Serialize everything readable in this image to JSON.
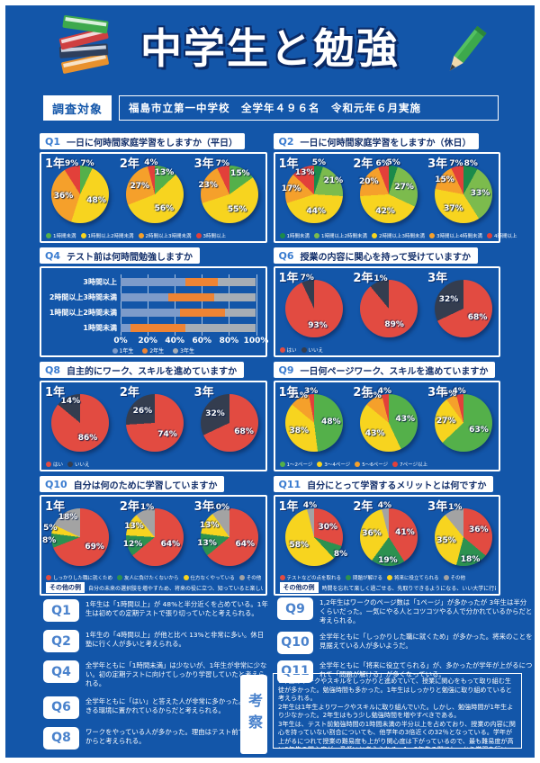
{
  "header": {
    "title": "中学生と勉強",
    "survey_label": "調査対象",
    "survey_info": "福島市立第一中学校　全学年４９６名　令和元年６月実施"
  },
  "colors": {
    "page_background": "#1356a9",
    "panel_border": "#ffffff",
    "question_id_blue": "#3a7cd0",
    "question_title_navy": "#14306b"
  },
  "chart_data": [
    {
      "id": "Q1",
      "type": "pie",
      "title": "一日に何時間家庭学習をしますか（平日）",
      "legend": [
        {
          "label": "1時間未満",
          "color": "#54b04a"
        },
        {
          "label": "1時間以上2時間未満",
          "color": "#f7d41f"
        },
        {
          "label": "2時間以上3時間未満",
          "color": "#f5a02b"
        },
        {
          "label": "3時間以上",
          "color": "#e2403a"
        }
      ],
      "series": [
        {
          "name": "1年",
          "values": [
            7,
            48,
            36,
            9
          ]
        },
        {
          "name": "2年",
          "values": [
            13,
            56,
            27,
            4
          ]
        },
        {
          "name": "3年",
          "values": [
            15,
            55,
            23,
            7
          ]
        }
      ]
    },
    {
      "id": "Q2",
      "type": "pie",
      "title": "一日に何時間家庭学習をしますか（休日）",
      "legend": [
        {
          "label": "1時間未満",
          "color": "#1b8a4b"
        },
        {
          "label": "1時間以上2時間未満",
          "color": "#7cbb4d"
        },
        {
          "label": "2時間以上3時間未満",
          "color": "#f7d41f"
        },
        {
          "label": "3時間以上4時間未満",
          "color": "#f5a02b"
        },
        {
          "label": "4時間以上",
          "color": "#e2403a"
        }
      ],
      "series": [
        {
          "name": "1年",
          "values": [
            5,
            21,
            44,
            17,
            13
          ]
        },
        {
          "name": "2年",
          "values": [
            5,
            27,
            42,
            20,
            6
          ]
        },
        {
          "name": "3年",
          "values": [
            8,
            33,
            37,
            15,
            7
          ]
        }
      ]
    },
    {
      "id": "Q4",
      "type": "bar",
      "title": "テスト前は何時間勉強しますか",
      "legend": [
        {
          "label": "1年生",
          "color": "#7d9bca"
        },
        {
          "label": "2年生",
          "color": "#ee8434"
        },
        {
          "label": "3年生",
          "color": "#a6adb5"
        }
      ],
      "rows": [
        {
          "category": "3時間以上",
          "values": [
            48,
            24,
            28
          ]
        },
        {
          "category": "2時間以上3時間未満",
          "values": [
            35,
            34,
            31
          ]
        },
        {
          "category": "1時間以上2時間未満",
          "values": [
            44,
            33,
            23
          ]
        },
        {
          "category": "1時間未満",
          "values": [
            7,
            41,
            52
          ]
        }
      ],
      "xticks": [
        "0%",
        "20%",
        "40%",
        "60%",
        "80%",
        "100%"
      ]
    },
    {
      "id": "Q6",
      "type": "pie",
      "title": "授業の内容に関心を持って受けていますか",
      "legend": [
        {
          "label": "はい",
          "color": "#e24b41"
        },
        {
          "label": "いいえ",
          "color": "#343d4f"
        }
      ],
      "series": [
        {
          "name": "1年",
          "values": [
            93,
            7
          ]
        },
        {
          "name": "2年",
          "values": [
            89,
            11
          ]
        },
        {
          "name": "3年",
          "values": [
            68,
            32
          ]
        }
      ]
    },
    {
      "id": "Q8",
      "type": "pie",
      "title": "自主的にワーク、スキルを進めていますか",
      "legend": [
        {
          "label": "はい",
          "color": "#e24b41"
        },
        {
          "label": "いいえ",
          "color": "#343d4f"
        }
      ],
      "series": [
        {
          "name": "1年",
          "values": [
            86,
            14
          ]
        },
        {
          "name": "2年",
          "values": [
            74,
            26
          ]
        },
        {
          "name": "3年",
          "values": [
            68,
            32
          ]
        }
      ]
    },
    {
      "id": "Q9",
      "type": "pie",
      "title": "一日何ページワーク、スキルを進めていますか",
      "legend": [
        {
          "label": "1～2ページ",
          "color": "#54b04a"
        },
        {
          "label": "3～4ページ",
          "color": "#f7d41f"
        },
        {
          "label": "5～6ページ",
          "color": "#f5a02b"
        },
        {
          "label": "7ページ以上",
          "color": "#e2403a"
        }
      ],
      "series": [
        {
          "name": "1年",
          "values": [
            48,
            38,
            11,
            3
          ]
        },
        {
          "name": "2年",
          "values": [
            43,
            43,
            10,
            4
          ]
        },
        {
          "name": "3年",
          "values": [
            63,
            27,
            6,
            4
          ]
        }
      ]
    },
    {
      "id": "Q10",
      "type": "pie",
      "title": "自分は何のために学習していますか",
      "legend": [
        {
          "label": "しっかりした職に就くため",
          "color": "#e24b41"
        },
        {
          "label": "友人に負けたくないから",
          "color": "#2c9150"
        },
        {
          "label": "仕方なくやっている",
          "color": "#f7d41f"
        },
        {
          "label": "その他",
          "color": "#a3a3a3"
        }
      ],
      "series": [
        {
          "name": "1年",
          "values": [
            69,
            8,
            5,
            18
          ]
        },
        {
          "name": "2年",
          "values": [
            64,
            12,
            13,
            11
          ]
        },
        {
          "name": "3年",
          "values": [
            64,
            13,
            13,
            10
          ]
        }
      ],
      "other_label": "その他の例",
      "other_text": "自分の未来の選択肢を増やすため、将来の役に立つ、知っていると楽しいから"
    },
    {
      "id": "Q11",
      "type": "pie",
      "title": "自分にとって学習するメリットとは何ですか",
      "legend": [
        {
          "label": "テストなどの点を取れる",
          "color": "#e24b41"
        },
        {
          "label": "問題が解ける",
          "color": "#2c9150"
        },
        {
          "label": "将来に役立てられる",
          "color": "#f7d41f"
        },
        {
          "label": "その他",
          "color": "#a3a3a3"
        }
      ],
      "series": [
        {
          "name": "1年",
          "values": [
            30,
            8,
            58,
            4
          ]
        },
        {
          "name": "2年",
          "values": [
            41,
            19,
            36,
            4
          ]
        },
        {
          "name": "3年",
          "values": [
            36,
            18,
            35,
            11
          ]
        }
      ],
      "other_label": "その他の例",
      "other_text": "時間を忘れて楽しく過ごせる、先取りできるようになる、いい大学に行ける"
    }
  ],
  "comments": {
    "left": [
      {
        "id": "Q1",
        "text": "1年生は「1時間以上」が 48%と半分近くを占めている。1年生は初めての定期テストで張り切っていたと考えられる。"
      },
      {
        "id": "Q2",
        "text": "1年生の「4時間以上」が他と比べ 13%と非常に多い。休日塾に行く人が多いと考えられる。"
      },
      {
        "id": "Q4",
        "text": "全学年ともに「1時間未満」は少ないが、1年生が非常に少ない。初の定期テストに向けてしっかり学習していたと考えられる。"
      },
      {
        "id": "Q6",
        "text": "全学年ともに「はい」と答えた人が非常に多かった。集中できる環境に置かれているからだと考えられる。"
      },
      {
        "id": "Q8",
        "text": "ワークをやっている人が多かった。理由はテスト前であったからと考えられる。"
      }
    ],
    "right": [
      {
        "id": "Q9",
        "text": "1,2年生はワークのページ数は「1ページ」が多かったが 3年生は半分くらいだった。一気にやる人とコツコツやる人で分かれているからだと考えられる。"
      },
      {
        "id": "Q10",
        "text": "全学年ともに「しっかりした職に就くため」が多かった。将来のことを見据えている人が多いようだ。"
      },
      {
        "id": "Q11",
        "text": "全学年ともに「将来に役立てられる」が、多かったが学年が上がるにつれて「問題が解ける」が多くなっている。"
      }
    ]
  },
  "kousatsu": {
    "label": "考察",
    "paragraphs": [
      "1年生はワークやスキルをしっかりと進めていて、授業に関心をもって取り組む生徒が多かった。勉強時間も多かった。1年生はしっかりと勉強に取り組めていると考えられる。",
      "2年生は1年生よりワークやスキルに取り組んでいた。しかし、勉強時間が1年生より少なかった。2年生はもう少し勉強時間を増やすべきである。",
      "3年生は、テスト前勉強時間の1時間未満の半分以上を占めており、授業の内容に関心を持っていない割合についても、他学年の3倍近くの32％となっている。学年が上がるにつれて授業の難易度も上がり関心度は下がっているので、最も難易度が高い3年生の関心度が一番低いと考えられる。1・2年生の間にしっかり学習を行い、3年生でも授業の内容を理解できるようにするのが大切である。"
    ]
  }
}
